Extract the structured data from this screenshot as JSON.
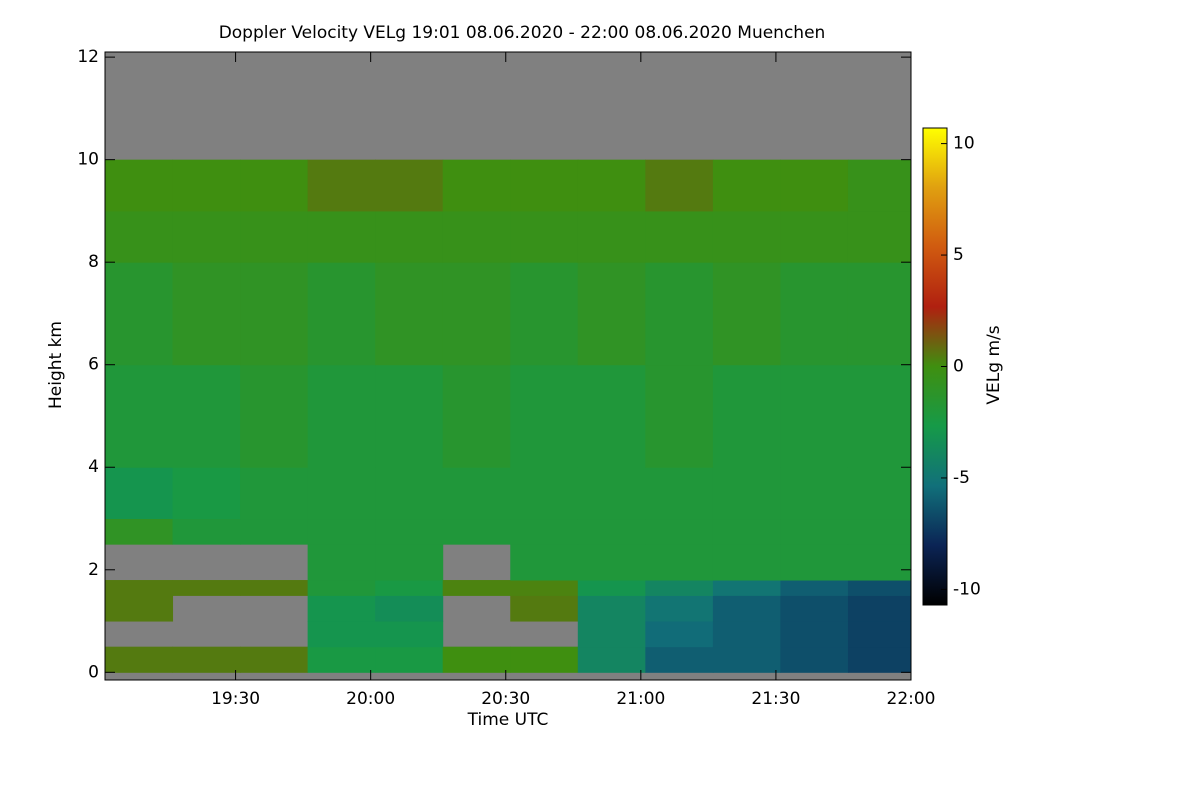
{
  "chart_data": {
    "type": "heatmap",
    "title": "Doppler Velocity VELg   19:01 08.06.2020 - 22:00 08.06.2020 Muenchen",
    "x_label": "Time UTC",
    "y_label": "Height km",
    "colorbar_label": "VELg m/s",
    "xbins": [
      1141,
      1156,
      1171,
      1186,
      1201,
      1216,
      1231,
      1246,
      1261,
      1276,
      1291,
      1306,
      1320
    ],
    "ybins": [
      0,
      0.5,
      1,
      1.5,
      1.8,
      2.5,
      3,
      4,
      6,
      8,
      9,
      10,
      12
    ],
    "values": [
      [
        0.5,
        0.5,
        0.5,
        -2.5,
        -2.5,
        0,
        0,
        -4,
        -6,
        -6,
        -6.5,
        -7
      ],
      [
        null,
        null,
        null,
        -3,
        -3,
        null,
        null,
        -4,
        -5.5,
        -6,
        -6.5,
        -7
      ],
      [
        0.5,
        null,
        null,
        -3,
        -3.5,
        null,
        0.5,
        -4,
        -5,
        -6,
        -6.5,
        -7
      ],
      [
        0.5,
        0.5,
        0.5,
        -2,
        -2.5,
        0.3,
        0.3,
        -3,
        -4,
        -5,
        -6,
        -6.5
      ],
      [
        null,
        null,
        null,
        -2,
        -2,
        null,
        -2,
        -2,
        -2,
        -2,
        -2,
        -2
      ],
      [
        -1,
        -2,
        -2,
        -2,
        -2,
        -2,
        -2,
        -2,
        -2,
        -2,
        -2,
        -2
      ],
      [
        -3,
        -2.5,
        -2,
        -2,
        -2,
        -2,
        -2,
        -2,
        -2,
        -2,
        -2,
        -2
      ],
      [
        -2,
        -2,
        -1.5,
        -2,
        -2,
        -1.5,
        -2,
        -2,
        -1.5,
        -2,
        -2,
        -2
      ],
      [
        -1.5,
        -1,
        -1,
        -1.5,
        -1,
        -1,
        -1.5,
        -1,
        -1.5,
        -1,
        -1.5,
        -1.5
      ],
      [
        -0.5,
        -0.5,
        -0.5,
        -0.5,
        -0.5,
        -0.5,
        -0.5,
        -0.5,
        -0.5,
        -0.5,
        -0.5,
        -0.5
      ],
      [
        0,
        0,
        0,
        0.5,
        0.5,
        0,
        0,
        0,
        0.5,
        0,
        0,
        -0.5
      ],
      [
        null,
        null,
        null,
        null,
        null,
        null,
        null,
        null,
        null,
        null,
        null,
        null
      ]
    ],
    "nodata_color": "#808080",
    "xlim": [
      1141,
      1320
    ],
    "xticks": [
      {
        "value": 1170,
        "label": "19:30"
      },
      {
        "value": 1200,
        "label": "20:00"
      },
      {
        "value": 1230,
        "label": "20:30"
      },
      {
        "value": 1260,
        "label": "21:00"
      },
      {
        "value": 1290,
        "label": "21:30"
      },
      {
        "value": 1320,
        "label": "22:00"
      }
    ],
    "ylim": [
      -0.15,
      12.1
    ],
    "yticks": [
      0,
      2,
      4,
      6,
      8,
      10,
      12
    ],
    "clim": [
      -10.7,
      10.7
    ],
    "cticks": [
      -10,
      -5,
      0,
      5,
      10
    ],
    "colormap": [
      "#000000",
      "#0b2455",
      "#11707a",
      "#169a48",
      "#3f8f10",
      "#b02010",
      "#d05a10",
      "#e0a010",
      "#ffff00"
    ]
  }
}
